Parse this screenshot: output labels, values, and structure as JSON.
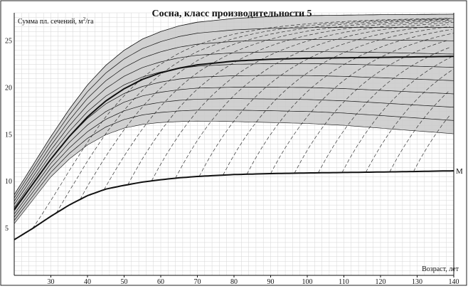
{
  "chart_data": {
    "type": "line",
    "title": "Сосна, класс производительности 5",
    "ylabel": "Сумма пл. сечений, м",
    "ylabel_sup": "2",
    "ylabel_suffix": "/га",
    "xlabel": "Возраст, лет",
    "xlim": [
      20,
      140
    ],
    "ylim": [
      0,
      28
    ],
    "x_ticks": [
      30,
      40,
      50,
      60,
      70,
      80,
      90,
      100,
      110,
      120,
      130,
      140
    ],
    "y_ticks": [
      5,
      10,
      15,
      20,
      25
    ],
    "grid": true,
    "colors": {
      "band_fill": "#c9c9c9",
      "line": "#111111",
      "grid": "#d6d6d6",
      "dashed": "#333333"
    },
    "series": [
      {
        "name": "M",
        "style": "bold",
        "x": [
          20,
          25,
          30,
          35,
          40,
          45,
          50,
          55,
          60,
          65,
          70,
          80,
          90,
          100,
          110,
          120,
          130,
          140
        ],
        "values": [
          3.8,
          5.0,
          6.3,
          7.5,
          8.5,
          9.2,
          9.6,
          9.95,
          10.2,
          10.4,
          10.55,
          10.75,
          10.85,
          10.92,
          10.97,
          11.02,
          11.08,
          11.15
        ]
      },
      {
        "name": "",
        "style": "bold",
        "x": [
          20,
          25,
          30,
          35,
          40,
          45,
          50,
          55,
          60,
          65,
          70,
          80,
          90,
          100,
          110,
          120,
          130,
          140
        ],
        "values": [
          7.0,
          9.7,
          12.4,
          14.8,
          16.9,
          18.6,
          19.9,
          20.9,
          21.6,
          22.1,
          22.45,
          22.85,
          23.05,
          23.15,
          23.2,
          23.25,
          23.3,
          23.35
        ]
      }
    ],
    "band": {
      "x": [
        20,
        25,
        30,
        35,
        40,
        45,
        50,
        55,
        60,
        65,
        70,
        80,
        90,
        100,
        110,
        120,
        130,
        140
      ],
      "upper": [
        8.6,
        11.7,
        14.8,
        17.7,
        20.3,
        22.4,
        24.0,
        25.2,
        26.0,
        26.6,
        27.0,
        27.4,
        27.6,
        27.7,
        27.75,
        27.8,
        27.82,
        27.85
      ],
      "lower": [
        5.5,
        8.0,
        10.5,
        12.4,
        13.9,
        15.0,
        15.7,
        16.1,
        16.3,
        16.4,
        16.45,
        16.4,
        16.3,
        16.2,
        16.0,
        15.7,
        15.4,
        15.1
      ]
    },
    "thin_curve_count": 8,
    "dashed_curve_count": 17
  }
}
